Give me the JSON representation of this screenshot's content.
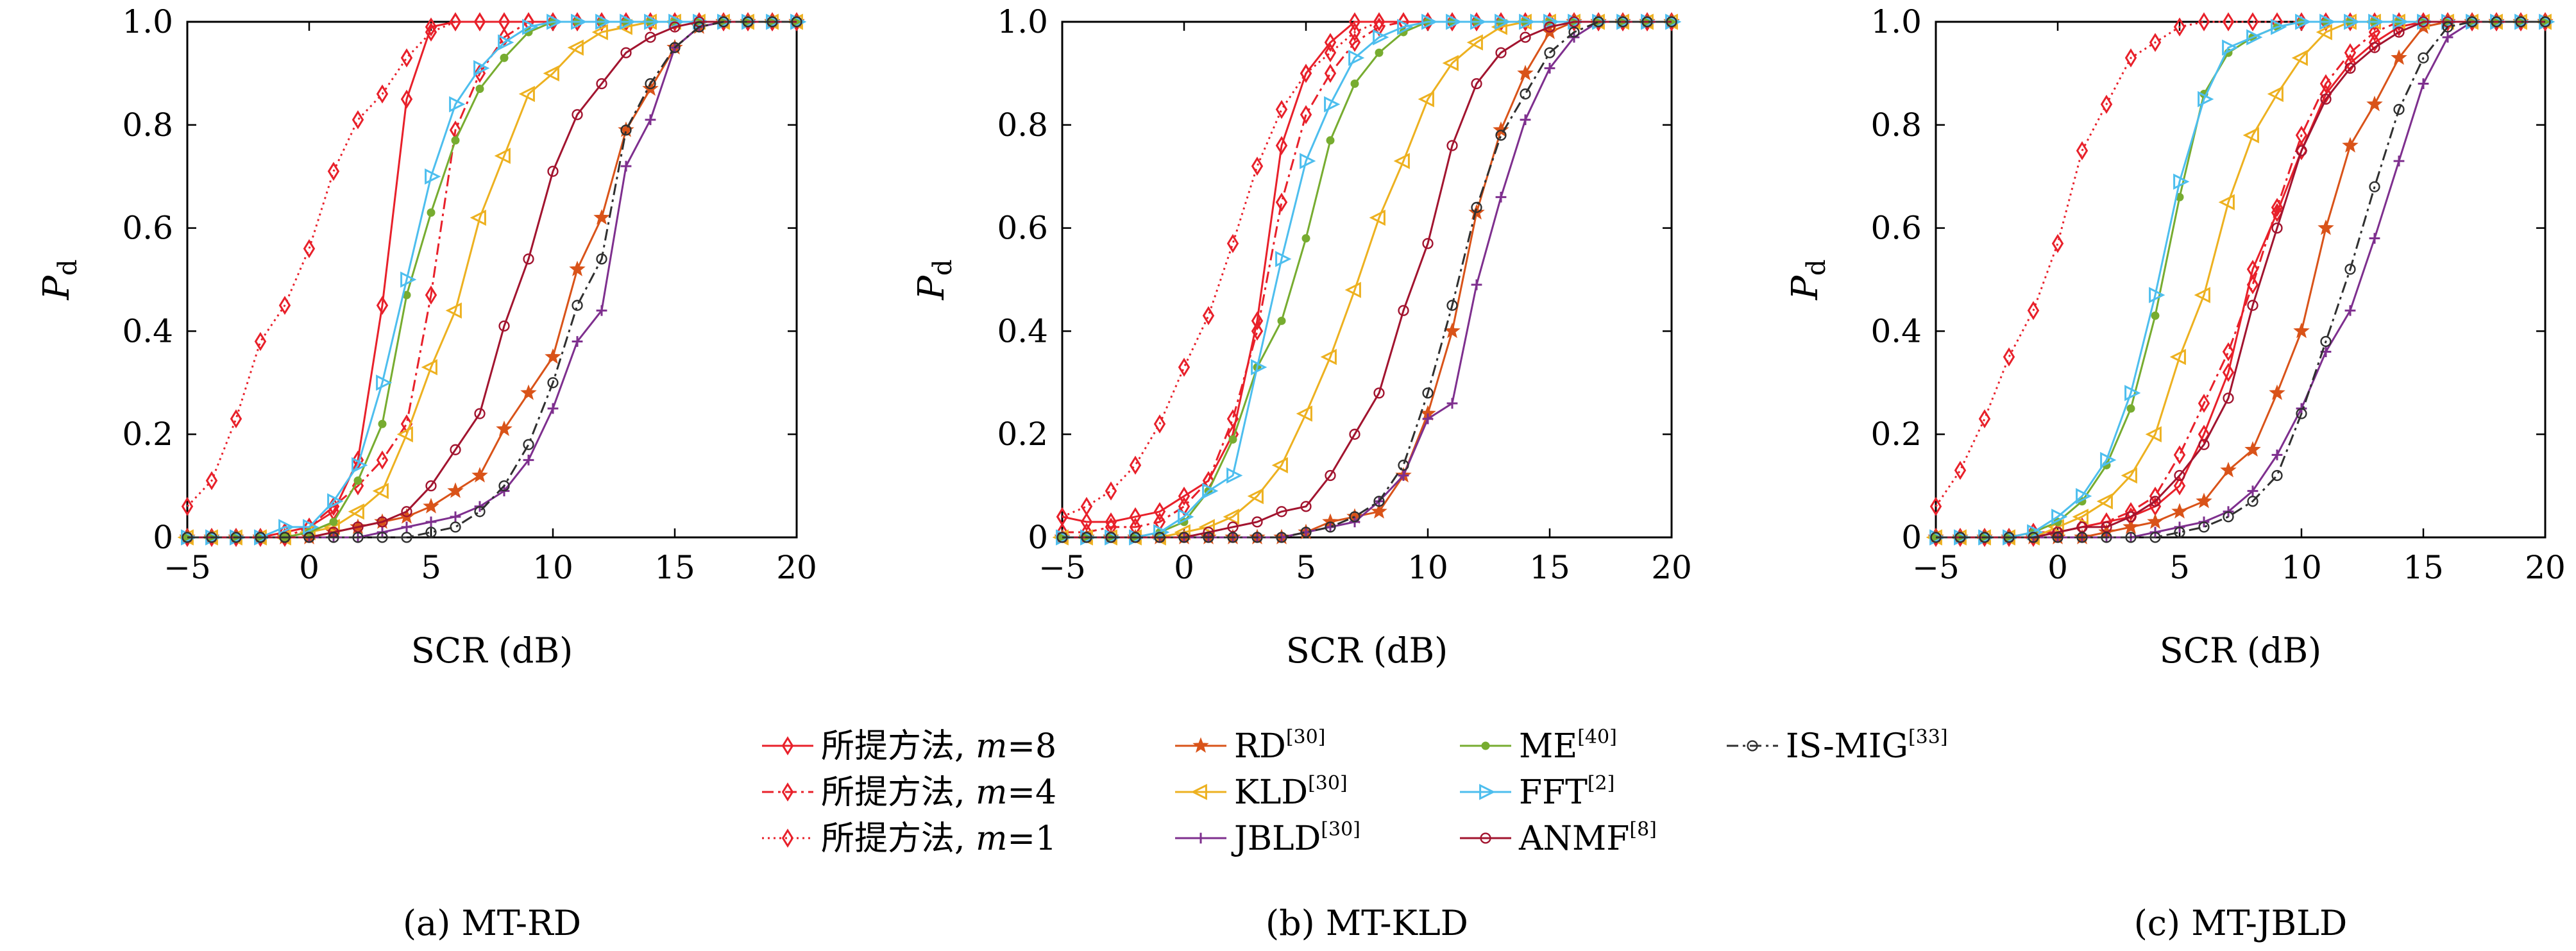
{
  "legend": [
    {
      "id": "prop8",
      "name": "所提方法, m=8",
      "label_prefix": "所提方法, ",
      "label_var": "m",
      "label_suffix": "=8",
      "color": "#e8202a",
      "dash": "solid",
      "marker": "diamond"
    },
    {
      "id": "prop4",
      "name": "所提方法, m=4",
      "label_prefix": "所提方法, ",
      "label_var": "m",
      "label_suffix": "=4",
      "color": "#e8202a",
      "dash": "dashdot",
      "marker": "diamond"
    },
    {
      "id": "prop1",
      "name": "所提方法, m=1",
      "label_prefix": "所提方法, ",
      "label_var": "m",
      "label_suffix": "=1",
      "color": "#e8202a",
      "dash": "dotted",
      "marker": "diamond"
    },
    {
      "id": "rd",
      "name": "RD[30]",
      "label_prefix": "RD",
      "label_sup": "[30]",
      "color": "#d95319",
      "dash": "solid",
      "marker": "star"
    },
    {
      "id": "kld",
      "name": "KLD[30]",
      "label_prefix": "KLD",
      "label_sup": "[30]",
      "color": "#edb120",
      "dash": "solid",
      "marker": "tri-left"
    },
    {
      "id": "jbld",
      "name": "JBLD[30]",
      "label_prefix": "JBLD",
      "label_sup": "[30]",
      "color": "#7e2f8e",
      "dash": "solid",
      "marker": "plus"
    },
    {
      "id": "me",
      "name": "ME[40]",
      "label_prefix": "ME",
      "label_sup": "[40]",
      "color": "#77ac30",
      "dash": "solid",
      "marker": "dot"
    },
    {
      "id": "fft",
      "name": "FFT[2]",
      "label_prefix": "FFT",
      "label_sup": "[2]",
      "color": "#4dbeee",
      "dash": "solid",
      "marker": "tri-right"
    },
    {
      "id": "anmf",
      "name": "ANMF[8]",
      "label_prefix": "ANMF",
      "label_sup": "[8]",
      "color": "#a2142f",
      "dash": "solid",
      "marker": "circle"
    },
    {
      "id": "ismig",
      "name": "IS-MIG[33]",
      "label_prefix": "IS-MIG",
      "label_sup": "[33]",
      "color": "#303030",
      "dash": "dashdot",
      "marker": "circle"
    }
  ],
  "chart_data": [
    {
      "type": "line",
      "caption": "(a) MT-RD",
      "xlabel": "SCR (dB)",
      "ylabel": "P_d",
      "ylabel_main": "P",
      "ylabel_sub": "d",
      "xlim": [
        -5,
        20
      ],
      "ylim": [
        0,
        1
      ],
      "xticks": [
        -5,
        0,
        5,
        10,
        15,
        20
      ],
      "yticks": [
        0,
        0.2,
        0.4,
        0.6,
        0.8,
        1.0
      ],
      "ytick_labels": [
        "0",
        "0.2",
        "0.4",
        "0.6",
        "0.8",
        "1.0"
      ],
      "grid": false,
      "x": [
        -5,
        -4,
        -3,
        -2,
        -1,
        0,
        1,
        2,
        3,
        4,
        5,
        6,
        7,
        8,
        9,
        10,
        11,
        12,
        13,
        14,
        15,
        16,
        17,
        18,
        19,
        20
      ],
      "series": [
        {
          "id": "prop8",
          "values": [
            0,
            0,
            0,
            0,
            0.01,
            0.02,
            0.05,
            0.15,
            0.45,
            0.85,
            0.99,
            1,
            1,
            1,
            1,
            1,
            1,
            1,
            1,
            1,
            1,
            1,
            1,
            1,
            1,
            1
          ]
        },
        {
          "id": "prop4",
          "values": [
            0,
            0,
            0,
            0,
            0,
            0.02,
            0.06,
            0.1,
            0.15,
            0.22,
            0.47,
            0.79,
            0.9,
            0.97,
            1,
            1,
            1,
            1,
            1,
            1,
            1,
            1,
            1,
            1,
            1,
            1
          ]
        },
        {
          "id": "prop1",
          "values": [
            0.06,
            0.11,
            0.23,
            0.38,
            0.45,
            0.56,
            0.71,
            0.81,
            0.86,
            0.93,
            0.98,
            1,
            1,
            1,
            1,
            1,
            1,
            1,
            1,
            1,
            1,
            1,
            1,
            1,
            1,
            1
          ]
        },
        {
          "id": "rd",
          "values": [
            0,
            0,
            0,
            0,
            0,
            0,
            0.01,
            0.02,
            0.03,
            0.04,
            0.06,
            0.09,
            0.12,
            0.21,
            0.28,
            0.35,
            0.52,
            0.62,
            0.79,
            0.87,
            0.95,
            0.99,
            1,
            1,
            1,
            1
          ]
        },
        {
          "id": "kld",
          "values": [
            0,
            0,
            0,
            0,
            0,
            0.01,
            0.02,
            0.05,
            0.09,
            0.2,
            0.33,
            0.44,
            0.62,
            0.74,
            0.86,
            0.9,
            0.95,
            0.98,
            0.99,
            1,
            1,
            1,
            1,
            1,
            1,
            1
          ]
        },
        {
          "id": "jbld",
          "values": [
            0,
            0,
            0,
            0,
            0,
            0,
            0,
            0,
            0.01,
            0.02,
            0.03,
            0.04,
            0.06,
            0.09,
            0.15,
            0.25,
            0.38,
            0.44,
            0.72,
            0.81,
            0.95,
            0.99,
            1,
            1,
            1,
            1
          ]
        },
        {
          "id": "me",
          "values": [
            0,
            0,
            0,
            0,
            0,
            0.01,
            0.03,
            0.11,
            0.22,
            0.47,
            0.63,
            0.77,
            0.87,
            0.93,
            0.98,
            1,
            1,
            1,
            1,
            1,
            1,
            1,
            1,
            1,
            1,
            1
          ]
        },
        {
          "id": "fft",
          "values": [
            0,
            0,
            0,
            0,
            0.02,
            0.02,
            0.07,
            0.14,
            0.3,
            0.5,
            0.7,
            0.84,
            0.91,
            0.96,
            0.99,
            1,
            1,
            1,
            1,
            1,
            1,
            1,
            1,
            1,
            1,
            1
          ]
        },
        {
          "id": "anmf",
          "values": [
            0,
            0,
            0,
            0,
            0,
            0,
            0.01,
            0.02,
            0.03,
            0.05,
            0.1,
            0.17,
            0.24,
            0.41,
            0.54,
            0.71,
            0.82,
            0.88,
            0.94,
            0.97,
            0.99,
            1,
            1,
            1,
            1,
            1
          ]
        },
        {
          "id": "ismig",
          "values": [
            0,
            0,
            0,
            0,
            0,
            0,
            0,
            0,
            0,
            0,
            0.01,
            0.02,
            0.05,
            0.1,
            0.18,
            0.3,
            0.45,
            0.54,
            0.79,
            0.88,
            0.95,
            0.99,
            1,
            1,
            1,
            1
          ]
        }
      ]
    },
    {
      "type": "line",
      "caption": "(b) MT-KLD",
      "xlabel": "SCR (dB)",
      "ylabel": "P_d",
      "ylabel_main": "P",
      "ylabel_sub": "d",
      "xlim": [
        -5,
        20
      ],
      "ylim": [
        0,
        1
      ],
      "xticks": [
        -5,
        0,
        5,
        10,
        15,
        20
      ],
      "yticks": [
        0,
        0.2,
        0.4,
        0.6,
        0.8,
        1.0
      ],
      "ytick_labels": [
        "0",
        "0.2",
        "0.4",
        "0.6",
        "0.8",
        "1.0"
      ],
      "grid": false,
      "x": [
        -5,
        -4,
        -3,
        -2,
        -1,
        0,
        1,
        2,
        3,
        4,
        5,
        6,
        7,
        8,
        9,
        10,
        11,
        12,
        13,
        14,
        15,
        16,
        17,
        18,
        19,
        20
      ],
      "series": [
        {
          "id": "prop8",
          "values": [
            0.04,
            0.03,
            0.03,
            0.04,
            0.05,
            0.08,
            0.11,
            0.2,
            0.42,
            0.76,
            0.9,
            0.96,
            1,
            1,
            1,
            1,
            1,
            1,
            1,
            1,
            1,
            1,
            1,
            1,
            1,
            1
          ]
        },
        {
          "id": "prop4",
          "values": [
            0.01,
            0.01,
            0.02,
            0.02,
            0.03,
            0.06,
            0.11,
            0.23,
            0.4,
            0.65,
            0.82,
            0.9,
            0.96,
            0.99,
            1,
            1,
            1,
            1,
            1,
            1,
            1,
            1,
            1,
            1,
            1,
            1
          ]
        },
        {
          "id": "prop1",
          "values": [
            0.04,
            0.06,
            0.09,
            0.14,
            0.22,
            0.33,
            0.43,
            0.57,
            0.72,
            0.83,
            0.9,
            0.94,
            0.98,
            1,
            1,
            1,
            1,
            1,
            1,
            1,
            1,
            1,
            1,
            1,
            1,
            1
          ]
        },
        {
          "id": "rd",
          "values": [
            0,
            0,
            0,
            0,
            0,
            0,
            0,
            0,
            0,
            0,
            0.01,
            0.03,
            0.04,
            0.05,
            0.12,
            0.24,
            0.4,
            0.63,
            0.79,
            0.9,
            0.98,
            1,
            1,
            1,
            1,
            1
          ]
        },
        {
          "id": "kld",
          "values": [
            0,
            0,
            0,
            0,
            0,
            0.01,
            0.02,
            0.04,
            0.08,
            0.14,
            0.24,
            0.35,
            0.48,
            0.62,
            0.73,
            0.85,
            0.92,
            0.96,
            0.99,
            1,
            1,
            1,
            1,
            1,
            1,
            1
          ]
        },
        {
          "id": "jbld",
          "values": [
            0,
            0,
            0,
            0,
            0,
            0,
            0,
            0,
            0,
            0,
            0.01,
            0.02,
            0.03,
            0.07,
            0.12,
            0.23,
            0.26,
            0.49,
            0.66,
            0.81,
            0.91,
            0.97,
            1,
            1,
            1,
            1
          ]
        },
        {
          "id": "me",
          "values": [
            0,
            0,
            0,
            0,
            0.01,
            0.03,
            0.09,
            0.19,
            0.33,
            0.42,
            0.58,
            0.77,
            0.88,
            0.94,
            0.98,
            1,
            1,
            1,
            1,
            1,
            1,
            1,
            1,
            1,
            1,
            1
          ]
        },
        {
          "id": "fft",
          "values": [
            0,
            0,
            0,
            0,
            0.01,
            0.04,
            0.09,
            0.12,
            0.33,
            0.54,
            0.73,
            0.84,
            0.93,
            0.97,
            0.99,
            1,
            1,
            1,
            1,
            1,
            1,
            1,
            1,
            1,
            1,
            1
          ]
        },
        {
          "id": "anmf",
          "values": [
            0,
            0,
            0,
            0,
            0,
            0,
            0.01,
            0.02,
            0.03,
            0.05,
            0.06,
            0.12,
            0.2,
            0.28,
            0.44,
            0.57,
            0.76,
            0.88,
            0.94,
            0.97,
            0.99,
            1,
            1,
            1,
            1,
            1
          ]
        },
        {
          "id": "ismig",
          "values": [
            0,
            0,
            0,
            0,
            0,
            0,
            0,
            0,
            0,
            0,
            0.01,
            0.02,
            0.04,
            0.07,
            0.14,
            0.28,
            0.45,
            0.64,
            0.78,
            0.86,
            0.94,
            0.98,
            1,
            1,
            1,
            1
          ]
        }
      ]
    },
    {
      "type": "line",
      "caption": "(c) MT-JBLD",
      "xlabel": "SCR (dB)",
      "ylabel": "P_d",
      "ylabel_main": "P",
      "ylabel_sub": "d",
      "xlim": [
        -5,
        20
      ],
      "ylim": [
        0,
        1
      ],
      "xticks": [
        -5,
        0,
        5,
        10,
        15,
        20
      ],
      "yticks": [
        0,
        0.2,
        0.4,
        0.6,
        0.8,
        1.0
      ],
      "ytick_labels": [
        "0",
        "0.2",
        "0.4",
        "0.6",
        "0.8",
        "1.0"
      ],
      "grid": false,
      "x": [
        -5,
        -4,
        -3,
        -2,
        -1,
        0,
        1,
        2,
        3,
        4,
        5,
        6,
        7,
        8,
        9,
        10,
        11,
        12,
        13,
        14,
        15,
        16,
        17,
        18,
        19,
        20
      ],
      "series": [
        {
          "id": "prop8",
          "values": [
            0,
            0,
            0,
            0,
            0.01,
            0.01,
            0.02,
            0.03,
            0.04,
            0.06,
            0.1,
            0.2,
            0.32,
            0.52,
            0.63,
            0.75,
            0.86,
            0.92,
            0.96,
            0.99,
            1,
            1,
            1,
            1,
            1,
            1
          ]
        },
        {
          "id": "prop4",
          "values": [
            0,
            0,
            0,
            0,
            0,
            0.01,
            0.02,
            0.03,
            0.05,
            0.08,
            0.16,
            0.26,
            0.36,
            0.49,
            0.64,
            0.78,
            0.88,
            0.94,
            0.98,
            1,
            1,
            1,
            1,
            1,
            1,
            1
          ]
        },
        {
          "id": "prop1",
          "values": [
            0.06,
            0.13,
            0.23,
            0.35,
            0.44,
            0.57,
            0.75,
            0.84,
            0.93,
            0.96,
            0.99,
            1,
            1,
            1,
            1,
            1,
            1,
            1,
            1,
            1,
            1,
            1,
            1,
            1,
            1,
            1
          ]
        },
        {
          "id": "rd",
          "values": [
            0,
            0,
            0,
            0,
            0,
            0,
            0,
            0.01,
            0.02,
            0.03,
            0.05,
            0.07,
            0.13,
            0.17,
            0.28,
            0.4,
            0.6,
            0.76,
            0.84,
            0.93,
            0.99,
            1,
            1,
            1,
            1,
            1
          ]
        },
        {
          "id": "kld",
          "values": [
            0,
            0,
            0,
            0,
            0,
            0.02,
            0.04,
            0.07,
            0.12,
            0.2,
            0.35,
            0.47,
            0.65,
            0.78,
            0.86,
            0.93,
            0.98,
            1,
            1,
            1,
            1,
            1,
            1,
            1,
            1,
            1
          ]
        },
        {
          "id": "jbld",
          "values": [
            0,
            0,
            0,
            0,
            0,
            0,
            0,
            0,
            0,
            0.01,
            0.02,
            0.03,
            0.05,
            0.09,
            0.16,
            0.25,
            0.36,
            0.44,
            0.58,
            0.73,
            0.88,
            0.97,
            1,
            1,
            1,
            1
          ]
        },
        {
          "id": "me",
          "values": [
            0,
            0,
            0,
            0,
            0.01,
            0.03,
            0.07,
            0.14,
            0.25,
            0.43,
            0.66,
            0.86,
            0.94,
            0.97,
            0.99,
            1,
            1,
            1,
            1,
            1,
            1,
            1,
            1,
            1,
            1,
            1
          ]
        },
        {
          "id": "fft",
          "values": [
            0,
            0,
            0,
            0,
            0.01,
            0.04,
            0.08,
            0.15,
            0.28,
            0.47,
            0.69,
            0.85,
            0.95,
            0.97,
            0.99,
            1,
            1,
            1,
            1,
            1,
            1,
            1,
            1,
            1,
            1,
            1
          ]
        },
        {
          "id": "anmf",
          "values": [
            0,
            0,
            0,
            0,
            0,
            0.01,
            0.02,
            0.02,
            0.04,
            0.07,
            0.12,
            0.18,
            0.27,
            0.45,
            0.6,
            0.75,
            0.85,
            0.91,
            0.95,
            0.98,
            1,
            1,
            1,
            1,
            1,
            1
          ]
        },
        {
          "id": "ismig",
          "values": [
            0,
            0,
            0,
            0,
            0,
            0,
            0,
            0,
            0,
            0,
            0.01,
            0.02,
            0.04,
            0.07,
            0.12,
            0.24,
            0.38,
            0.52,
            0.68,
            0.83,
            0.93,
            0.99,
            1,
            1,
            1,
            1
          ]
        }
      ]
    }
  ]
}
